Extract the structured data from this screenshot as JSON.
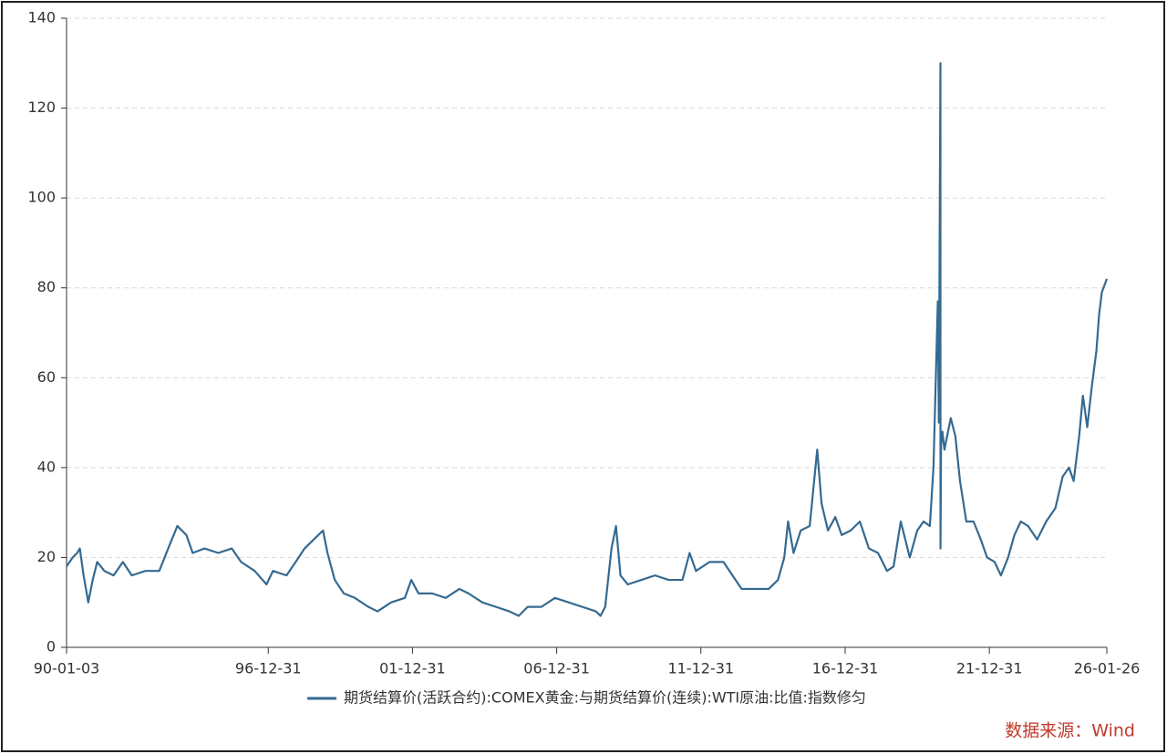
{
  "chart_data": {
    "type": "line",
    "x": [
      "90-01-03",
      "90-03-22",
      "90-05-18",
      "90-06-20",
      "90-08-07",
      "90-10-05",
      "90-11-30",
      "91-01-26",
      "91-04-27",
      "91-08-22",
      "91-12-17",
      "92-04-08",
      "92-09-27",
      "93-03-22",
      "93-07-13",
      "93-11-06",
      "94-02-28",
      "94-05-19",
      "94-10-16",
      "95-04-07",
      "95-09-27",
      "96-01-22",
      "96-07-12",
      "96-12-09",
      "97-02-28",
      "97-08-19",
      "97-12-13",
      "98-04-05",
      "98-07-30",
      "98-11-24",
      "99-01-20",
      "99-04-22",
      "99-08-14",
      "00-01-01",
      "00-06-21",
      "00-10-15",
      "01-04-05",
      "01-09-26",
      "01-12-16",
      "02-03-17",
      "02-09-06",
      "03-02-25",
      "03-08-17",
      "03-12-10",
      "04-06-02",
      "04-11-21",
      "05-05-12",
      "05-09-06",
      "05-12-29",
      "06-06-20",
      "06-12-09",
      "07-05-31",
      "07-11-21",
      "08-05-11",
      "08-07-08",
      "08-09-05",
      "08-11-24",
      "09-01-20",
      "09-03-18",
      "09-06-18",
      "09-12-08",
      "10-05-30",
      "10-11-18",
      "11-05-11",
      "11-08-10",
      "11-10-30",
      "12-04-19",
      "12-10-12",
      "13-02-03",
      "13-05-30",
      "13-11-17",
      "14-05-08",
      "14-09-02",
      "14-11-21",
      "15-01-08",
      "15-03-18",
      "15-06-17",
      "15-10-09",
      "16-01-12",
      "16-03-07",
      "16-05-27",
      "16-08-28",
      "16-11-17",
      "17-03-11",
      "17-07-05",
      "17-10-27",
      "18-02-20",
      "18-06-14",
      "18-09-05",
      "18-12-05",
      "19-03-29",
      "19-07-01",
      "19-09-20",
      "19-12-08",
      "20-01-23",
      "20-03-18",
      "20-03-31",
      "20-04-20",
      "20-04-21",
      "20-04-28",
      "20-05-15",
      "20-06-10",
      "20-08-29",
      "20-10-26",
      "20-12-24",
      "21-03-14",
      "21-06-13",
      "21-09-13",
      "21-12-02",
      "22-03-07",
      "22-05-26",
      "22-08-25",
      "22-11-13",
      "23-02-02",
      "23-05-04",
      "23-08-28",
      "23-12-20",
      "24-04-15",
      "24-07-16",
      "24-10-04",
      "24-12-02",
      "25-02-10",
      "25-03-29",
      "25-05-23",
      "25-07-20",
      "25-09-16",
      "25-10-20",
      "25-11-24",
      "26-01-26"
    ],
    "series": [
      {
        "name": "期货结算价(活跃合约):COMEX黄金:与期货结算价(连续):WTI原油:比值:指数修匀",
        "color": "#356a91",
        "values": [
          18,
          20,
          21,
          22,
          16,
          10,
          15,
          19,
          17,
          16,
          19,
          16,
          17,
          17,
          22,
          27,
          25,
          21,
          22,
          21,
          22,
          19,
          17,
          14,
          17,
          16,
          19,
          22,
          24,
          26,
          21,
          15,
          12,
          11,
          9,
          8,
          10,
          11,
          15,
          12,
          12,
          11,
          13,
          12,
          10,
          9,
          8,
          7,
          9,
          9,
          11,
          10,
          9,
          8,
          7,
          9,
          22,
          27,
          16,
          14,
          15,
          16,
          15,
          15,
          21,
          17,
          19,
          19,
          16,
          13,
          13,
          13,
          15,
          20,
          28,
          21,
          26,
          27,
          44,
          32,
          26,
          29,
          25,
          26,
          28,
          22,
          21,
          17,
          18,
          28,
          20,
          26,
          28,
          27,
          40,
          77,
          50,
          130,
          22,
          45,
          48,
          44,
          51,
          47,
          37,
          28,
          28,
          24,
          20,
          19,
          16,
          20,
          25,
          28,
          27,
          24,
          28,
          31,
          38,
          40,
          37,
          47,
          56,
          49,
          58,
          66,
          74,
          79,
          82
        ]
      }
    ],
    "xlim": [
      "90-01-03",
      "26-01-26"
    ],
    "xticks": [
      "90-01-03",
      "96-12-31",
      "01-12-31",
      "06-12-31",
      "11-12-31",
      "16-12-31",
      "21-12-31",
      "26-01-26"
    ],
    "ylim": [
      0,
      140
    ],
    "yticks": [
      0,
      20,
      40,
      60,
      80,
      100,
      120,
      140
    ],
    "grid": true,
    "legend": "bottom",
    "source": "数据来源：Wind"
  }
}
